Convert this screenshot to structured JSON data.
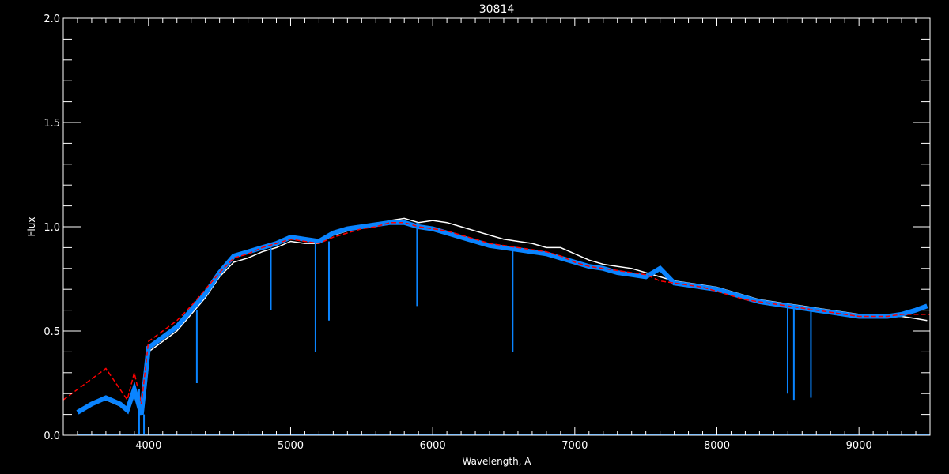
{
  "chart_data": {
    "type": "line",
    "title": "30814",
    "xlabel": "Wavelength, A",
    "ylabel": "Flux",
    "xlim": [
      3400,
      9500
    ],
    "ylim": [
      0,
      2.0
    ],
    "x_ticks": [
      "4000",
      "5000",
      "6000",
      "7000",
      "8000",
      "9000"
    ],
    "y_ticks": [
      "0.0",
      "0.5",
      "1.0",
      "1.5",
      "2.0"
    ],
    "grid": false,
    "background": "#000000",
    "series": [
      {
        "color": "#ffffff",
        "x": [
          3500,
          3600,
          3700,
          3800,
          3850,
          3900,
          3950,
          4000,
          4100,
          4200,
          4300,
          4400,
          4500,
          4600,
          4700,
          4800,
          4900,
          5000,
          5100,
          5200,
          5300,
          5400,
          5500,
          5600,
          5700,
          5800,
          5900,
          6000,
          6100,
          6200,
          6300,
          6400,
          6500,
          6600,
          6700,
          6800,
          6900,
          7000,
          7100,
          7200,
          7300,
          7400,
          7500,
          7600,
          7700,
          7800,
          7900,
          8000,
          8100,
          8200,
          8300,
          8400,
          8500,
          8600,
          8700,
          8800,
          8900,
          9000,
          9100,
          9200,
          9300,
          9400,
          9480
        ],
        "y": [
          0.12,
          0.15,
          0.17,
          0.14,
          0.12,
          0.2,
          0.1,
          0.4,
          0.45,
          0.5,
          0.58,
          0.66,
          0.76,
          0.83,
          0.85,
          0.88,
          0.9,
          0.93,
          0.92,
          0.92,
          0.96,
          0.98,
          1.0,
          1.01,
          1.03,
          1.04,
          1.02,
          1.03,
          1.02,
          1.0,
          0.98,
          0.96,
          0.94,
          0.93,
          0.92,
          0.9,
          0.9,
          0.87,
          0.84,
          0.82,
          0.81,
          0.8,
          0.78,
          0.76,
          0.74,
          0.73,
          0.72,
          0.71,
          0.69,
          0.67,
          0.65,
          0.64,
          0.63,
          0.62,
          0.61,
          0.6,
          0.59,
          0.58,
          0.58,
          0.57,
          0.57,
          0.56,
          0.55
        ]
      },
      {
        "color": "#0a84ff",
        "x": [
          3500,
          3600,
          3700,
          3800,
          3850,
          3900,
          3950,
          4000,
          4100,
          4200,
          4300,
          4400,
          4500,
          4600,
          4700,
          4800,
          4900,
          5000,
          5100,
          5200,
          5300,
          5400,
          5500,
          5600,
          5700,
          5800,
          5900,
          6000,
          6100,
          6200,
          6300,
          6400,
          6500,
          6600,
          6700,
          6800,
          6900,
          7000,
          7100,
          7200,
          7300,
          7400,
          7500,
          7600,
          7700,
          7800,
          7900,
          8000,
          8100,
          8200,
          8300,
          8400,
          8500,
          8600,
          8700,
          8800,
          8900,
          9000,
          9100,
          9200,
          9300,
          9400,
          9480
        ],
        "y": [
          0.11,
          0.15,
          0.18,
          0.15,
          0.12,
          0.22,
          0.1,
          0.42,
          0.47,
          0.52,
          0.6,
          0.68,
          0.78,
          0.86,
          0.88,
          0.9,
          0.92,
          0.95,
          0.94,
          0.93,
          0.97,
          0.99,
          1.0,
          1.01,
          1.02,
          1.02,
          1.0,
          0.99,
          0.97,
          0.95,
          0.93,
          0.91,
          0.9,
          0.89,
          0.88,
          0.87,
          0.85,
          0.83,
          0.81,
          0.8,
          0.78,
          0.77,
          0.76,
          0.8,
          0.73,
          0.72,
          0.71,
          0.7,
          0.68,
          0.66,
          0.64,
          0.63,
          0.62,
          0.61,
          0.6,
          0.59,
          0.58,
          0.57,
          0.57,
          0.57,
          0.58,
          0.6,
          0.62
        ]
      },
      {
        "color": "#ff0000",
        "x": [
          3400,
          3500,
          3600,
          3700,
          3800,
          3850,
          3900,
          3950,
          4000,
          4100,
          4200,
          4300,
          4400,
          4500,
          4600,
          4700,
          4800,
          4900,
          5000,
          5100,
          5200,
          5300,
          5400,
          5500,
          5600,
          5700,
          5800,
          5900,
          6000,
          6100,
          6200,
          6300,
          6400,
          6500,
          6600,
          6700,
          6800,
          6900,
          7000,
          7100,
          7200,
          7300,
          7400,
          7500,
          7600,
          7700,
          7800,
          7900,
          8000,
          8100,
          8200,
          8300,
          8400,
          8500,
          8600,
          8700,
          8800,
          8900,
          9000,
          9100,
          9200,
          9300,
          9400,
          9500
        ],
        "y": [
          0.17,
          0.22,
          0.27,
          0.32,
          0.22,
          0.17,
          0.3,
          0.15,
          0.45,
          0.5,
          0.55,
          0.62,
          0.7,
          0.78,
          0.85,
          0.87,
          0.9,
          0.92,
          0.94,
          0.93,
          0.92,
          0.95,
          0.97,
          0.99,
          1.0,
          1.02,
          1.02,
          1.0,
          0.99,
          0.98,
          0.96,
          0.94,
          0.92,
          0.91,
          0.9,
          0.89,
          0.88,
          0.86,
          0.83,
          0.81,
          0.8,
          0.79,
          0.78,
          0.77,
          0.74,
          0.73,
          0.72,
          0.71,
          0.69,
          0.67,
          0.65,
          0.64,
          0.63,
          0.62,
          0.61,
          0.6,
          0.59,
          0.58,
          0.57,
          0.57,
          0.57,
          0.58,
          0.58,
          0.58
        ]
      }
    ],
    "absorption_lines": {
      "color": "#0a84ff",
      "x": [
        3934,
        3968,
        4340,
        4861,
        5175,
        5270,
        5890,
        6563,
        7600,
        8498,
        8542,
        8662
      ],
      "y_min": [
        0.0,
        0.0,
        0.25,
        0.6,
        0.4,
        0.55,
        0.62,
        0.4,
        1.0,
        0.2,
        0.17,
        0.18
      ]
    },
    "zero_line_color": "#0a84ff"
  }
}
